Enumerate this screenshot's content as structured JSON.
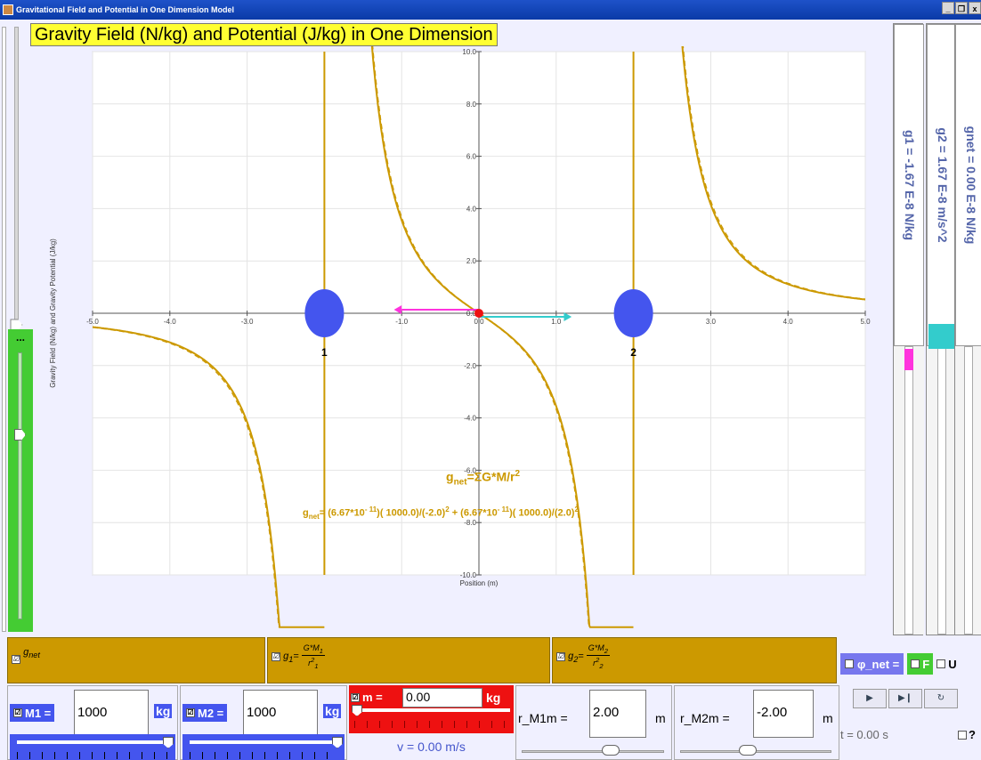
{
  "window": {
    "title": "Gravitational Field and Potential in One Dimension Model",
    "controls": [
      "_",
      "❐",
      "x"
    ]
  },
  "graph": {
    "title": "Gravity Field (N/kg) and Potential (J/kg) in One Dimension",
    "xlabel": "Position (m)",
    "ylabel": "Gravity Field (N/kg) and Gravity Potential (J/kg)",
    "x_ticks": [
      "-5.0",
      "-4.0",
      "-3.0",
      "-2.0",
      "-1.0",
      "0.0",
      "1.0",
      "2.0",
      "3.0",
      "4.0",
      "5.0"
    ],
    "y_ticks": [
      "10.0",
      "8.0",
      "6.0",
      "4.0",
      "2.0",
      "0.0",
      "-2.0",
      "-4.0",
      "-6.0",
      "-8.0",
      "-10.0"
    ],
    "x_range": [
      -5,
      5
    ],
    "y_range": [
      -10,
      10
    ],
    "mass1_label": "1",
    "mass2_label": "2",
    "mass1_x": -2.0,
    "mass2_x": 2.0,
    "curve_color": "#cc9900",
    "mass_color": "#4455ee",
    "formula_lhs": "g",
    "formula_lhs_sub": "net",
    "formula_rhs": "=ΣG*M/r",
    "formula_rhs_sup": "2",
    "formula2": {
      "lhs": "g",
      "lhs_sub": "net",
      "part1": "= (6.67*10",
      "exp1": "- 11",
      "part2": ")( 1000.0)/(-2.0)",
      "sq1": "2",
      "part3": " + (6.67*10",
      "exp2": "- 11",
      "part4": ")( 1000.0)/(2.0)",
      "sq2": "2"
    }
  },
  "readouts": {
    "g1": "g1 = -1.67 E-8 N/kg",
    "g2": "g2 = 1.67 E-8 m/s^2",
    "gnet": "gnet = 0.00 E-8 N/kg"
  },
  "toggles": {
    "gnet_label": "g",
    "gnet_sub": "net",
    "g1_label": "g",
    "g1_sub": "1",
    "g1_num": "G*M",
    "g1_num_sub": "1",
    "g1_den": "r",
    "g1_den_sub": "1",
    "g1_den_sup": "2",
    "g2_label": "g",
    "g2_sub": "2",
    "g2_num": "G*M",
    "g2_num_sub": "2",
    "g2_den": "r",
    "g2_den_sub": "2",
    "g2_den_sup": "2",
    "phi_label": "φ_net =",
    "f_label": "F",
    "u_label": "U"
  },
  "controls": {
    "m1_label": "M1 =",
    "m1_value": "1000",
    "m1_unit": "kg",
    "m1_slider_fraction": 1.0,
    "m2_label": "M2 =",
    "m2_value": "1000",
    "m2_unit": "kg",
    "m2_slider_fraction": 1.0,
    "m_label": "m =",
    "m_value": "0.00",
    "m_unit": "kg",
    "m_slider_fraction": 0.0,
    "v_readout": "v = 0.00 m/s",
    "r_m1_label": "r_M1m =",
    "r_m1_value": "2.00",
    "r_m1_unit": "m",
    "r_m2_label": "r_M2m =",
    "r_m2_value": "-2.00",
    "r_m2_unit": "m",
    "time_readout": "t = 0.00 s",
    "help_label": "?",
    "play_icons": [
      "▶",
      "▶❙",
      "↻"
    ],
    "checkbox_mark": "☑"
  }
}
